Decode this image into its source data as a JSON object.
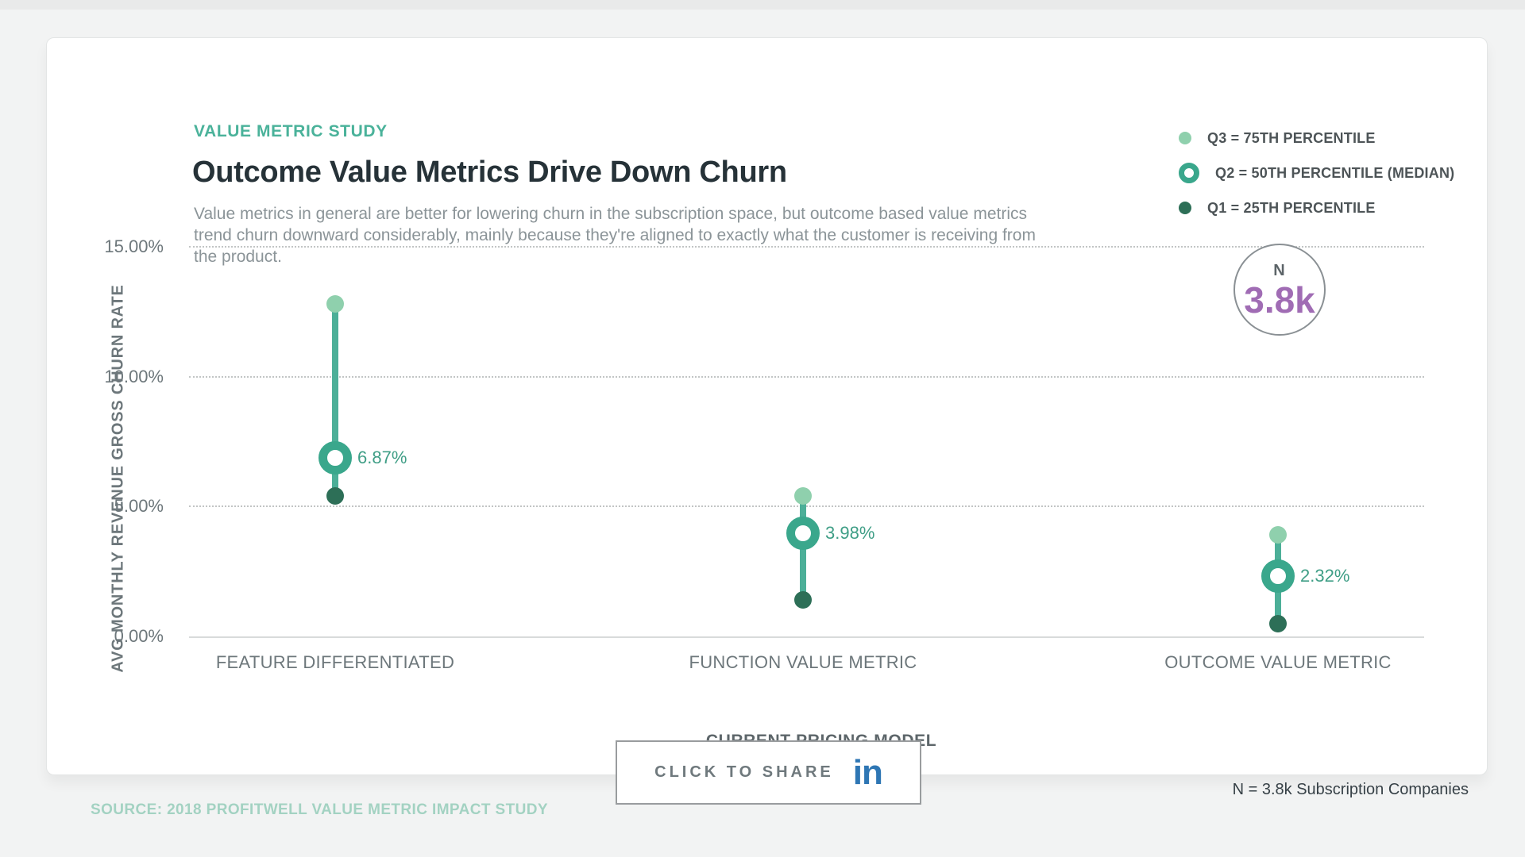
{
  "page": {
    "background": "#f2f3f3"
  },
  "header": {
    "eyebrow": "VALUE METRIC STUDY",
    "title": "Outcome Value Metrics Drive Down Churn",
    "subtitle": "Value metrics in general are better for lowering churn in the subscription space, but outcome based value metrics trend churn downward considerably, mainly because they're aligned to exactly what the customer is receiving from the product."
  },
  "legend": {
    "items": [
      {
        "label": "Q3 = 75TH PERCENTILE",
        "marker": "dot",
        "color": "#8fd0ad"
      },
      {
        "label": "Q2 = 50TH PERCENTILE (MEDIAN)",
        "marker": "ring",
        "color": "#3aa78c"
      },
      {
        "label": "Q1 = 25TH PERCENTILE",
        "marker": "dot",
        "color": "#2d6f57"
      }
    ]
  },
  "sample_badge": {
    "label": "N",
    "value": "3.8k"
  },
  "chart_data": {
    "type": "scatter",
    "subtype": "quartile-range-dot-plot",
    "categories": [
      "FEATURE DIFFERENTIATED",
      "FUNCTION VALUE METRIC",
      "OUTCOME VALUE METRIC"
    ],
    "series": [
      {
        "name": "Q3 = 75TH PERCENTILE",
        "values": [
          12.8,
          5.4,
          3.9
        ]
      },
      {
        "name": "Q2 = 50TH PERCENTILE (MEDIAN)",
        "values": [
          6.87,
          3.98,
          2.32
        ]
      },
      {
        "name": "Q1 = 25TH PERCENTILE",
        "values": [
          5.4,
          1.4,
          0.5
        ]
      }
    ],
    "point_labels": [
      "6.87%",
      "3.98%",
      "2.32%"
    ],
    "xlabel": "CURRENT PRICING MODEL",
    "ylabel": "AVG MONTHLY REVENUE GROSS CHURN RATE",
    "ylim": [
      0,
      15
    ],
    "yticks": [
      {
        "value": 0,
        "label": "0.00%"
      },
      {
        "value": 5,
        "label": "5.00%"
      },
      {
        "value": 10,
        "label": "10.00%"
      },
      {
        "value": 15,
        "label": "15.00%"
      }
    ],
    "grid": "horizontal-dotted",
    "legend_position": "top-right"
  },
  "footer": {
    "share_button": {
      "label": "CLICK TO SHARE",
      "icon": "linkedin-in-logo",
      "icon_glyph": "in",
      "icon_color": "#2e76b4"
    },
    "sample_note": "N = 3.8k Subscription Companies",
    "source": "SOURCE: 2018 PROFITWELL VALUE METRIC IMPACT STUDY"
  },
  "colors": {
    "accent_teal": "#4ab29a",
    "stem": "#4caf98",
    "q3_dot": "#8fd0ad",
    "median_ring": "#3aa78c",
    "q1_dot": "#2d6f57",
    "value_label": "#3f9e86",
    "badge_value": "#a06cb4",
    "linkedin_blue": "#2e76b4",
    "source_text": "#a3d2c2"
  }
}
